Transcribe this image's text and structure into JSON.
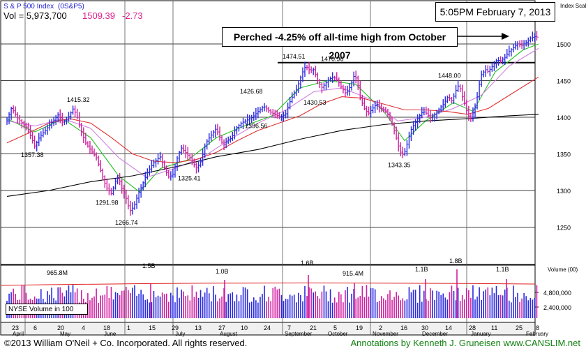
{
  "header": {
    "title": "S & P 500 Index",
    "symbol": "(0S&P5)",
    "vol_label": "Vol = 5,973,700",
    "price": "1509.39",
    "change": "-2.73"
  },
  "timestamp": "5:05PM February 7, 2013",
  "annotation": "Perched -4.25% off all-time high from October 2007",
  "footer": {
    "copyright": "©2013 William O'Neil + Co. Incorporated. All rights reserved.",
    "credit": "Annotations by Kenneth J. Gruneisen www.CANSLIM.net"
  },
  "chart_data": {
    "type": "ohlc",
    "price_axis": {
      "label": "Index Scale",
      "ticks": [
        1250,
        1300,
        1350,
        1400,
        1450,
        1500
      ],
      "range": [
        1225,
        1525
      ]
    },
    "volume_axis": {
      "label": "Volume (00)",
      "ticks": [
        "4,800,000",
        "2,400,000"
      ],
      "legend": "NYSE Volume in 100"
    },
    "x_ticks": [
      "23",
      "6",
      "20",
      "4",
      "18",
      "1",
      "15",
      "29",
      "13",
      "27",
      "10",
      "24",
      "7",
      "21",
      "5",
      "19",
      "2",
      "16",
      "30",
      "14",
      "28",
      "11",
      "25",
      "8"
    ],
    "month_labels": [
      "April",
      "May",
      "June",
      "July",
      "August",
      "September",
      "October",
      "November",
      "December",
      "January",
      "February"
    ],
    "resistance_level": 1474.51,
    "price_labels": [
      {
        "text": "1415.32",
        "value": 1415.32
      },
      {
        "text": "1357.38",
        "value": 1357.38
      },
      {
        "text": "1291.98",
        "value": 1291.98
      },
      {
        "text": "1266.74",
        "value": 1266.74
      },
      {
        "text": "1325.41",
        "value": 1325.41
      },
      {
        "text": "1426.68",
        "value": 1426.68
      },
      {
        "text": "1396.56",
        "value": 1396.56
      },
      {
        "text": "1474.51",
        "value": 1474.51
      },
      {
        "text": "1470.96",
        "value": 1470.96
      },
      {
        "text": "1430.53",
        "value": 1430.53
      },
      {
        "text": "1343.35",
        "value": 1343.35
      },
      {
        "text": "1448.00",
        "value": 1448.0
      }
    ],
    "volume_labels": [
      "965.8M",
      "1.5B",
      "1.0B",
      "1.6B",
      "915.4M",
      "1.1B",
      "1.8B",
      "1.1B"
    ],
    "series": [
      {
        "name": "price",
        "points": [
          [
            0,
            1395
          ],
          [
            6,
            1412
          ],
          [
            10,
            1408
          ],
          [
            15,
            1398
          ],
          [
            22,
            1392
          ],
          [
            28,
            1386
          ],
          [
            35,
            1372
          ],
          [
            40,
            1360
          ],
          [
            46,
            1372
          ],
          [
            53,
            1380
          ],
          [
            60,
            1388
          ],
          [
            67,
            1396
          ],
          [
            74,
            1404
          ],
          [
            80,
            1392
          ],
          [
            88,
            1400
          ],
          [
            95,
            1412
          ],
          [
            100,
            1402
          ],
          [
            105,
            1385
          ],
          [
            112,
            1366
          ],
          [
            120,
            1355
          ],
          [
            128,
            1345
          ],
          [
            135,
            1325
          ],
          [
            142,
            1305
          ],
          [
            150,
            1295
          ],
          [
            155,
            1312
          ],
          [
            160,
            1318
          ],
          [
            165,
            1302
          ],
          [
            170,
            1292
          ],
          [
            176,
            1272
          ],
          [
            182,
            1278
          ],
          [
            188,
            1295
          ],
          [
            195,
            1310
          ],
          [
            200,
            1322
          ],
          [
            206,
            1332
          ],
          [
            212,
            1340
          ],
          [
            220,
            1346
          ],
          [
            225,
            1332
          ],
          [
            232,
            1318
          ],
          [
            238,
            1322
          ],
          [
            245,
            1348
          ],
          [
            250,
            1358
          ],
          [
            256,
            1352
          ],
          [
            262,
            1345
          ],
          [
            268,
            1336
          ],
          [
            272,
            1330
          ],
          [
            278,
            1340
          ],
          [
            285,
            1365
          ],
          [
            290,
            1372
          ],
          [
            296,
            1380
          ],
          [
            300,
            1385
          ],
          [
            305,
            1372
          ],
          [
            310,
            1362
          ],
          [
            316,
            1368
          ],
          [
            322,
            1372
          ],
          [
            328,
            1385
          ],
          [
            336,
            1392
          ],
          [
            344,
            1396
          ],
          [
            352,
            1400
          ],
          [
            360,
            1408
          ],
          [
            368,
            1415
          ],
          [
            376,
            1408
          ],
          [
            384,
            1404
          ],
          [
            392,
            1400
          ],
          [
            400,
            1405
          ],
          [
            404,
            1418
          ],
          [
            410,
            1430
          ],
          [
            416,
            1440
          ],
          [
            422,
            1458
          ],
          [
            428,
            1470
          ],
          [
            434,
            1464
          ],
          [
            440,
            1465
          ],
          [
            446,
            1448
          ],
          [
            452,
            1440
          ],
          [
            456,
            1446
          ],
          [
            462,
            1452
          ],
          [
            468,
            1455
          ],
          [
            474,
            1450
          ],
          [
            480,
            1440
          ],
          [
            486,
            1432
          ],
          [
            492,
            1442
          ],
          [
            498,
            1458
          ],
          [
            502,
            1450
          ],
          [
            506,
            1428
          ],
          [
            512,
            1412
          ],
          [
            518,
            1405
          ],
          [
            524,
            1412
          ],
          [
            530,
            1418
          ],
          [
            536,
            1412
          ],
          [
            542,
            1410
          ],
          [
            548,
            1400
          ],
          [
            554,
            1386
          ],
          [
            558,
            1372
          ],
          [
            562,
            1358
          ],
          [
            566,
            1348
          ],
          [
            570,
            1352
          ],
          [
            576,
            1372
          ],
          [
            580,
            1385
          ],
          [
            585,
            1392
          ],
          [
            590,
            1400
          ],
          [
            596,
            1408
          ],
          [
            602,
            1405
          ],
          [
            608,
            1398
          ],
          [
            614,
            1405
          ],
          [
            620,
            1412
          ],
          [
            626,
            1418
          ],
          [
            632,
            1428
          ],
          [
            638,
            1422
          ],
          [
            644,
            1438
          ],
          [
            648,
            1445
          ],
          [
            652,
            1430
          ],
          [
            656,
            1418
          ],
          [
            660,
            1405
          ],
          [
            664,
            1398
          ],
          [
            668,
            1406
          ],
          [
            672,
            1415
          ],
          [
            676,
            1440
          ],
          [
            680,
            1458
          ],
          [
            686,
            1465
          ],
          [
            690,
            1462
          ],
          [
            696,
            1470
          ],
          [
            702,
            1478
          ],
          [
            708,
            1477
          ],
          [
            714,
            1482
          ],
          [
            720,
            1490
          ],
          [
            726,
            1495
          ],
          [
            732,
            1500
          ],
          [
            738,
            1498
          ],
          [
            744,
            1502
          ],
          [
            750,
            1508
          ],
          [
            756,
            1510
          ],
          [
            762,
            1509
          ]
        ]
      },
      {
        "name": "ma-short",
        "points": [
          [
            0,
            1398
          ],
          [
            40,
            1380
          ],
          [
            80,
            1398
          ],
          [
            120,
            1372
          ],
          [
            160,
            1320
          ],
          [
            190,
            1298
          ],
          [
            220,
            1330
          ],
          [
            260,
            1342
          ],
          [
            300,
            1372
          ],
          [
            340,
            1388
          ],
          [
            380,
            1402
          ],
          [
            420,
            1440
          ],
          [
            460,
            1450
          ],
          [
            500,
            1445
          ],
          [
            540,
            1408
          ],
          [
            570,
            1368
          ],
          [
            600,
            1395
          ],
          [
            640,
            1420
          ],
          [
            668,
            1408
          ],
          [
            700,
            1462
          ],
          [
            740,
            1492
          ],
          [
            762,
            1500
          ]
        ]
      },
      {
        "name": "ma-mid",
        "points": [
          [
            0,
            1395
          ],
          [
            40,
            1388
          ],
          [
            80,
            1398
          ],
          [
            120,
            1385
          ],
          [
            160,
            1345
          ],
          [
            200,
            1318
          ],
          [
            240,
            1330
          ],
          [
            280,
            1345
          ],
          [
            320,
            1370
          ],
          [
            360,
            1392
          ],
          [
            400,
            1410
          ],
          [
            440,
            1435
          ],
          [
            480,
            1440
          ],
          [
            520,
            1425
          ],
          [
            560,
            1395
          ],
          [
            600,
            1400
          ],
          [
            640,
            1412
          ],
          [
            680,
            1430
          ],
          [
            720,
            1470
          ],
          [
            762,
            1494
          ]
        ]
      },
      {
        "name": "ma-50",
        "points": [
          [
            0,
            1365
          ],
          [
            30,
            1378
          ],
          [
            60,
            1392
          ],
          [
            90,
            1398
          ],
          [
            120,
            1392
          ],
          [
            150,
            1372
          ],
          [
            180,
            1350
          ],
          [
            210,
            1340
          ],
          [
            240,
            1338
          ],
          [
            270,
            1342
          ],
          [
            300,
            1352
          ],
          [
            330,
            1368
          ],
          [
            360,
            1382
          ],
          [
            390,
            1392
          ],
          [
            420,
            1402
          ],
          [
            450,
            1418
          ],
          [
            480,
            1428
          ],
          [
            510,
            1426
          ],
          [
            540,
            1418
          ],
          [
            570,
            1410
          ],
          [
            600,
            1410
          ],
          [
            630,
            1408
          ],
          [
            660,
            1404
          ],
          [
            690,
            1412
          ],
          [
            720,
            1430
          ],
          [
            762,
            1455
          ]
        ]
      },
      {
        "name": "ma-200",
        "points": [
          [
            0,
            1292
          ],
          [
            60,
            1300
          ],
          [
            120,
            1312
          ],
          [
            180,
            1320
          ],
          [
            240,
            1332
          ],
          [
            300,
            1346
          ],
          [
            360,
            1356
          ],
          [
            420,
            1370
          ],
          [
            480,
            1382
          ],
          [
            540,
            1390
          ],
          [
            600,
            1395
          ],
          [
            660,
            1398
          ],
          [
            720,
            1402
          ],
          [
            762,
            1404
          ]
        ]
      }
    ]
  }
}
